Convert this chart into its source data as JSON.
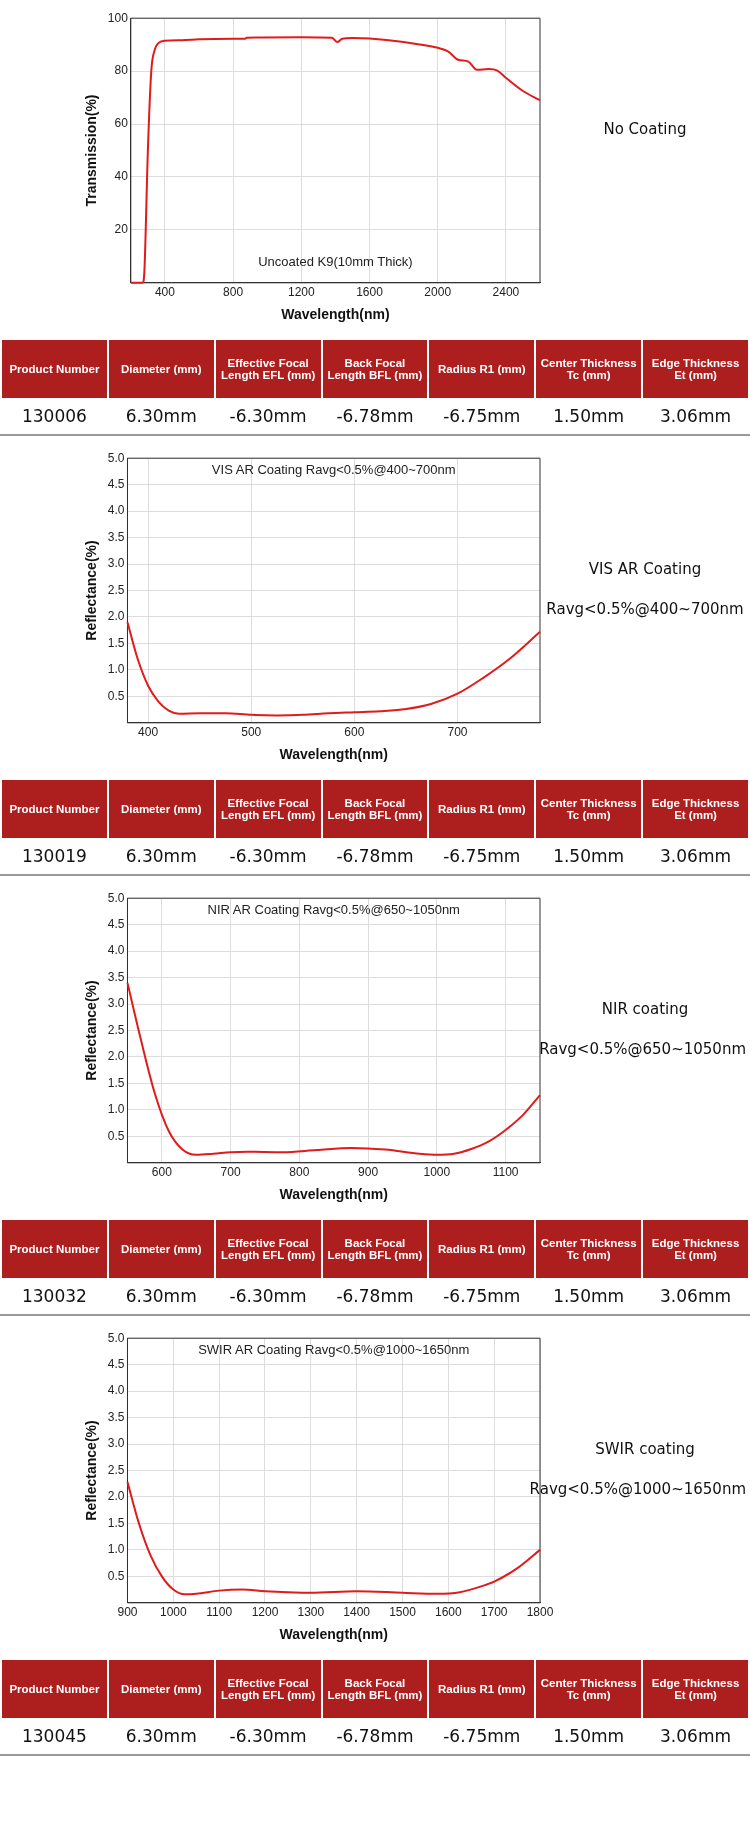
{
  "chart_data": [
    {
      "type": "line",
      "title": "Uncoated K9(10mm Thick)",
      "annotations": [
        "No Coating"
      ],
      "xlabel": "Wavelength(nm)",
      "ylabel": "Transmission(%)",
      "xlim": [
        200,
        2600
      ],
      "xticks": [
        400,
        800,
        1200,
        1600,
        2000,
        2400
      ],
      "ylim": [
        0,
        100
      ],
      "yticks": [
        20,
        40,
        60,
        80,
        100
      ],
      "grid": true,
      "x": [
        200,
        270,
        280,
        300,
        320,
        340,
        360,
        400,
        500,
        600,
        800,
        870,
        880,
        1200,
        1380,
        1410,
        1440,
        1500,
        1600,
        1800,
        2000,
        2060,
        2120,
        2180,
        2230,
        2300,
        2350,
        2400,
        2500,
        2600
      ],
      "series": [
        {
          "color": "#e01b1b",
          "values": [
            0,
            0,
            5,
            50,
            80,
            88,
            90.5,
            91.5,
            91.7,
            92,
            92.2,
            92.2,
            92.6,
            92.8,
            92.6,
            91,
            92.2,
            92.5,
            92.3,
            91,
            88.8,
            87.5,
            84.3,
            83.6,
            80.5,
            80.8,
            80.2,
            77.5,
            72.5,
            69
          ]
        }
      ]
    },
    {
      "type": "other",
      "categories": [
        "Product Number",
        "Diameter (mm)",
        "Effective Focal Length EFL (mm)",
        "Back Focal Length BFL (mm)",
        "Radius R1 (mm)",
        "Center Thickness Tc (mm)",
        "Edge Thickness Et (mm)"
      ],
      "annotations": [
        "130006",
        "6.30mm",
        "-6.30mm",
        "-6.78mm",
        "-6.75mm",
        "1.50mm",
        "3.06mm"
      ]
    },
    {
      "type": "line",
      "title": "VIS AR Coating Ravg<0.5%@400~700nm",
      "annotations": [
        "VIS AR Coating",
        "Ravg<0.5%@400~700nm"
      ],
      "xlabel": "Wavelength(nm)",
      "ylabel": "Reflectance(%)",
      "xlim": [
        380,
        780
      ],
      "xticks": [
        400,
        500,
        600,
        700
      ],
      "ylim": [
        0,
        5
      ],
      "yticks": [
        0.5,
        {
          "value": 1,
          "label": "1.0"
        },
        1.5,
        {
          "value": 2,
          "label": "2.0"
        },
        2.5,
        {
          "value": 3,
          "label": "3.0"
        },
        3.5,
        {
          "value": 4,
          "label": "4.0"
        },
        4.5,
        {
          "value": 5,
          "label": "5.0"
        }
      ],
      "grid": true,
      "x": [
        380,
        390,
        400,
        410,
        420,
        430,
        450,
        475,
        500,
        525,
        550,
        575,
        600,
        625,
        650,
        675,
        700,
        725,
        750,
        780
      ],
      "series": [
        {
          "color": "#e01b1b",
          "values": [
            1.9,
            1.2,
            0.7,
            0.4,
            0.23,
            0.17,
            0.18,
            0.18,
            0.15,
            0.14,
            0.15,
            0.18,
            0.2,
            0.22,
            0.26,
            0.36,
            0.55,
            0.85,
            1.2,
            1.72
          ]
        }
      ]
    },
    {
      "type": "other",
      "categories": [
        "Product Number",
        "Diameter (mm)",
        "Effective Focal Length EFL (mm)",
        "Back Focal Length BFL (mm)",
        "Radius R1 (mm)",
        "Center Thickness Tc (mm)",
        "Edge Thickness Et (mm)"
      ],
      "annotations": [
        "130019",
        "6.30mm",
        "-6.30mm",
        "-6.78mm",
        "-6.75mm",
        "1.50mm",
        "3.06mm"
      ]
    },
    {
      "type": "line",
      "title": "NIR AR Coating Ravg<0.5%@650~1050nm",
      "annotations": [
        "NIR coating",
        "Ravg<0.5%@650~1050nm"
      ],
      "xlabel": "Wavelength(nm)",
      "ylabel": "Reflectance(%)",
      "xlim": [
        550,
        1150
      ],
      "xticks": [
        600,
        700,
        800,
        900,
        1000,
        1100
      ],
      "ylim": [
        0,
        5
      ],
      "yticks": [
        0.5,
        {
          "value": 1,
          "label": "1.0"
        },
        1.5,
        {
          "value": 2,
          "label": "2.0"
        },
        2.5,
        {
          "value": 3,
          "label": "3.0"
        },
        3.5,
        {
          "value": 4,
          "label": "4.0"
        },
        4.5,
        {
          "value": 5,
          "label": "5.0"
        }
      ],
      "grid": true,
      "x": [
        550,
        570,
        590,
        610,
        630,
        650,
        675,
        700,
        725,
        775,
        825,
        875,
        925,
        975,
        1000,
        1025,
        1050,
        1075,
        1100,
        1125,
        1150
      ],
      "series": [
        {
          "color": "#e01b1b",
          "values": [
            3.4,
            2.3,
            1.3,
            0.6,
            0.25,
            0.15,
            0.17,
            0.2,
            0.21,
            0.2,
            0.24,
            0.28,
            0.25,
            0.17,
            0.15,
            0.17,
            0.26,
            0.4,
            0.62,
            0.9,
            1.28
          ]
        }
      ]
    },
    {
      "type": "other",
      "categories": [
        "Product Number",
        "Diameter (mm)",
        "Effective Focal Length EFL (mm)",
        "Back Focal Length BFL (mm)",
        "Radius R1 (mm)",
        "Center Thickness Tc (mm)",
        "Edge Thickness Et (mm)"
      ],
      "annotations": [
        "130032",
        "6.30mm",
        "-6.30mm",
        "-6.78mm",
        "-6.75mm",
        "1.50mm",
        "3.06mm"
      ]
    },
    {
      "type": "line",
      "title": "SWIR AR Coating Ravg<0.5%@1000~1650nm",
      "annotations": [
        "SWIR coating",
        "Ravg<0.5%@1000~1650nm"
      ],
      "xlabel": "Wavelength(nm)",
      "ylabel": "Reflectance(%)",
      "xlim": [
        900,
        1800
      ],
      "xticks": [
        900,
        1000,
        1100,
        1200,
        1300,
        1400,
        1500,
        1600,
        1700,
        1800
      ],
      "ylim": [
        0,
        5
      ],
      "yticks": [
        0.5,
        {
          "value": 1,
          "label": "1.0"
        },
        1.5,
        {
          "value": 2,
          "label": "2.0"
        },
        2.5,
        {
          "value": 3,
          "label": "3.0"
        },
        3.5,
        {
          "value": 4,
          "label": "4.0"
        },
        4.5,
        {
          "value": 5,
          "label": "5.0"
        }
      ],
      "grid": true,
      "x": [
        900,
        925,
        950,
        975,
        1000,
        1025,
        1050,
        1100,
        1150,
        1200,
        1250,
        1300,
        1400,
        1500,
        1575,
        1625,
        1675,
        1700,
        1750,
        1800
      ],
      "series": [
        {
          "color": "#e01b1b",
          "values": [
            2.28,
            1.5,
            0.9,
            0.5,
            0.25,
            0.16,
            0.17,
            0.23,
            0.25,
            0.22,
            0.2,
            0.19,
            0.22,
            0.19,
            0.17,
            0.2,
            0.32,
            0.4,
            0.65,
            1.0
          ]
        }
      ]
    },
    {
      "type": "other",
      "categories": [
        "Product Number",
        "Diameter (mm)",
        "Effective Focal Length EFL (mm)",
        "Back Focal Length BFL (mm)",
        "Radius R1 (mm)",
        "Center Thickness Tc (mm)",
        "Edge Thickness Et (mm)"
      ],
      "annotations": [
        "130045",
        "6.30mm",
        "-6.30mm",
        "-6.78mm",
        "-6.75mm",
        "1.50mm",
        "3.06mm"
      ]
    }
  ]
}
